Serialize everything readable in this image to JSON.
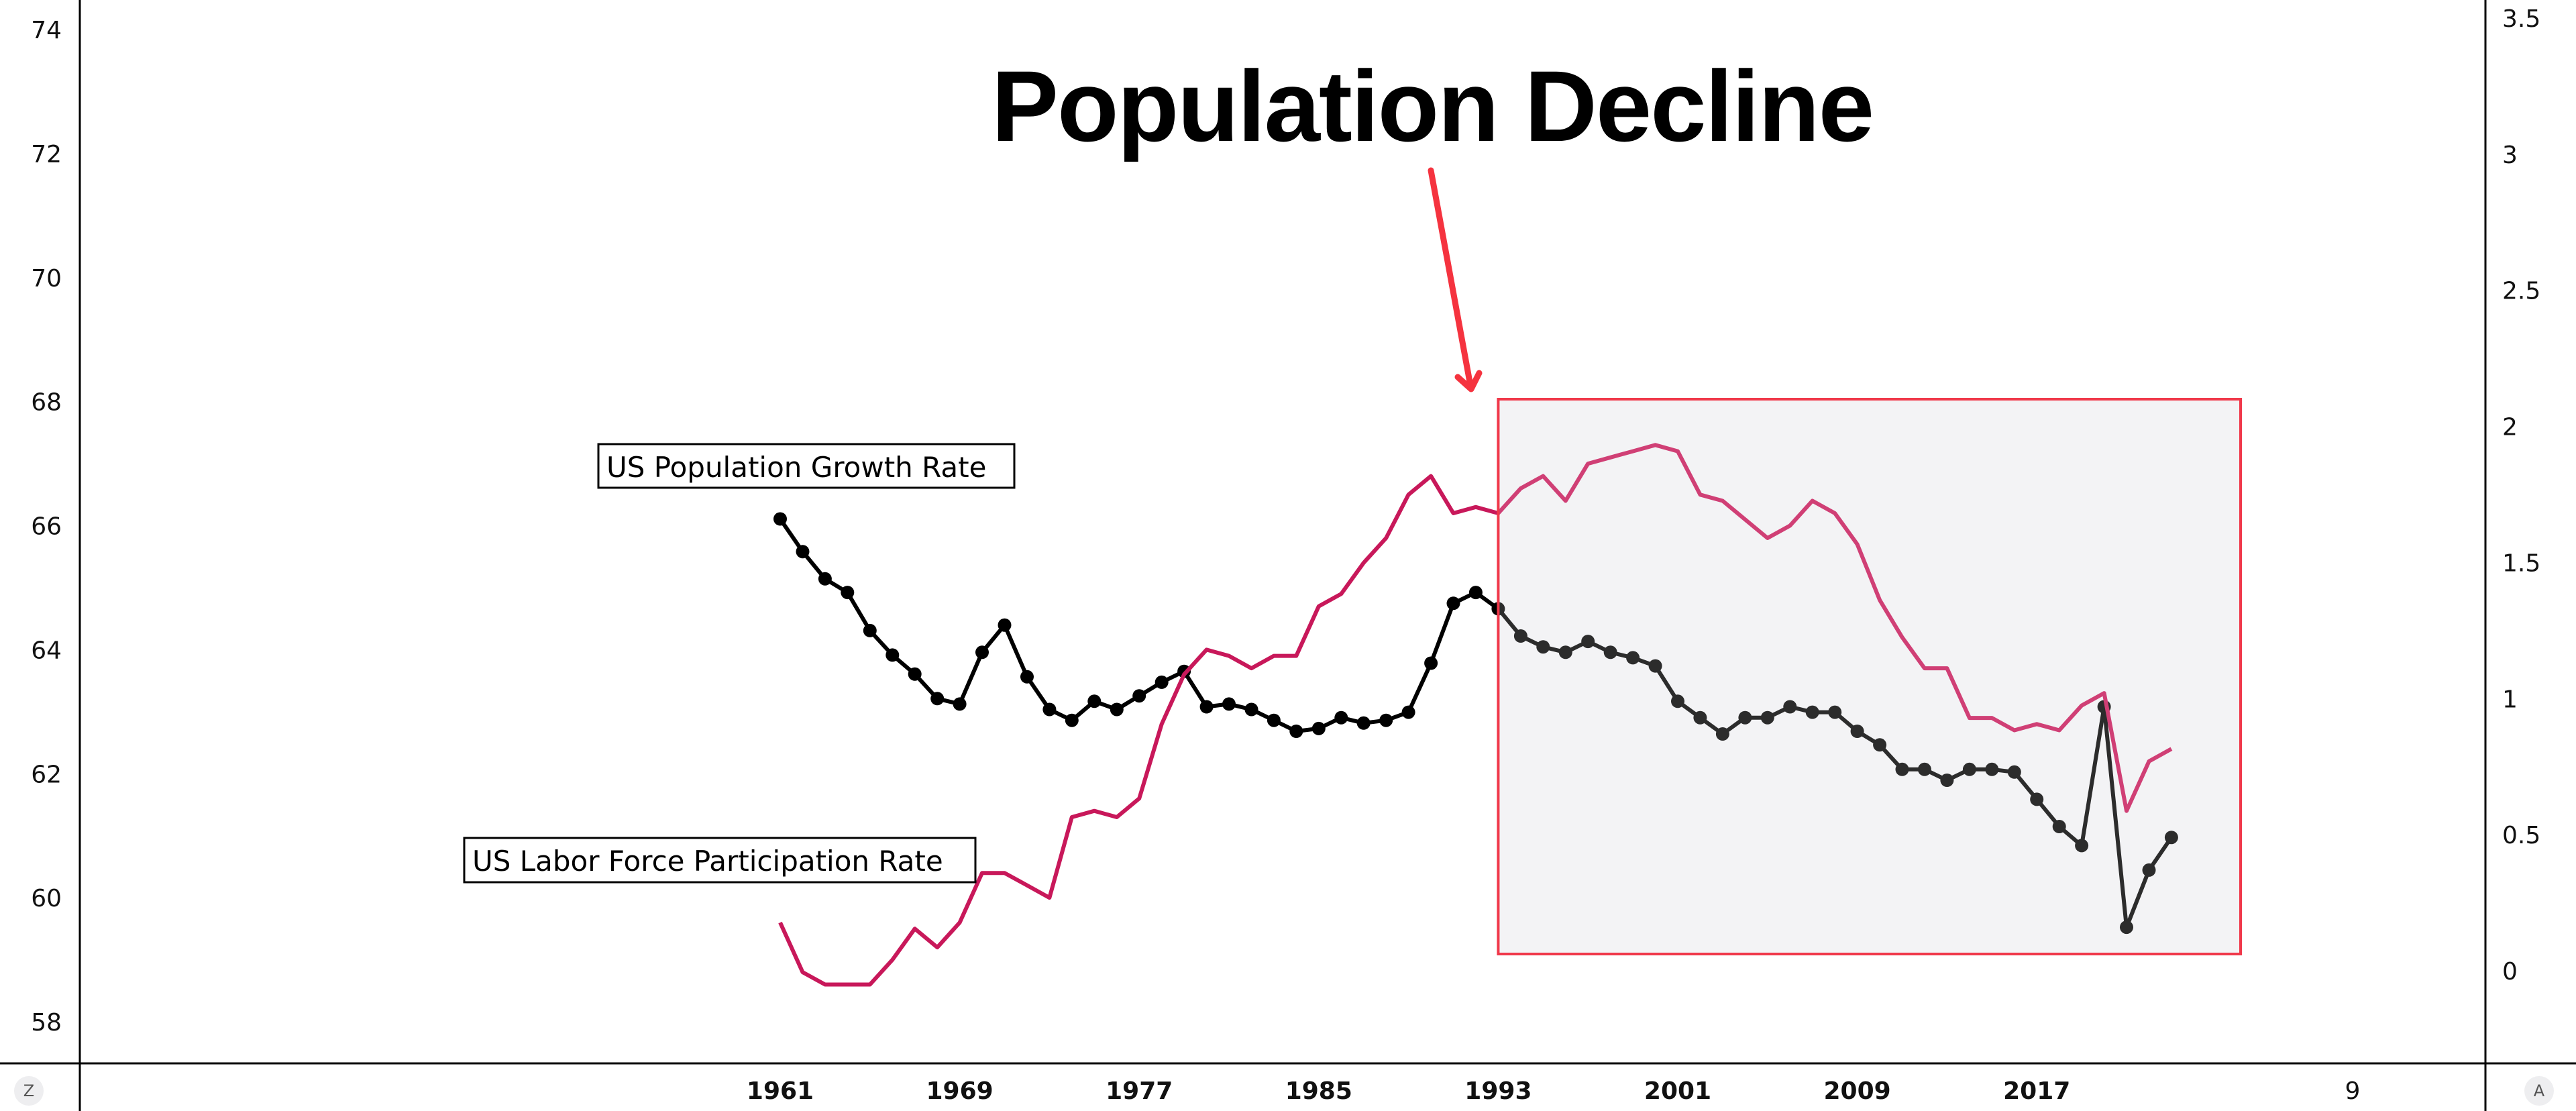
{
  "chart_data": {
    "type": "line",
    "title": "Population Decline",
    "xlabel": "",
    "ylabel_left": "",
    "ylabel_right": "",
    "x_ticks": [
      "1961",
      "1969",
      "1977",
      "1985",
      "1993",
      "2001",
      "2009",
      "2017"
    ],
    "x_extra_label": "9",
    "x_range": [
      1961,
      2023
    ],
    "y_left": {
      "range": [
        58,
        74
      ],
      "ticks": [
        "74",
        "72",
        "70",
        "68",
        "66",
        "64",
        "62",
        "60",
        "58"
      ]
    },
    "y_right": {
      "range": [
        0,
        3.5
      ],
      "ticks": [
        "3.5",
        "3",
        "2.5",
        "2",
        "1.5",
        "1",
        "0.5",
        "0"
      ]
    },
    "grid": false,
    "x": [
      1961,
      1962,
      1963,
      1964,
      1965,
      1966,
      1967,
      1968,
      1969,
      1970,
      1971,
      1972,
      1973,
      1974,
      1975,
      1976,
      1977,
      1978,
      1979,
      1980,
      1981,
      1982,
      1983,
      1984,
      1985,
      1986,
      1987,
      1988,
      1989,
      1990,
      1991,
      1992,
      1993,
      1994,
      1995,
      1996,
      1997,
      1998,
      1999,
      2000,
      2001,
      2002,
      2003,
      2004,
      2005,
      2006,
      2007,
      2008,
      2009,
      2010,
      2011,
      2012,
      2013,
      2014,
      2015,
      2016,
      2017,
      2018,
      2019,
      2020,
      2021,
      2022,
      2023
    ],
    "series": [
      {
        "name": "US Population Growth Rate",
        "axis": "right",
        "color": "#000000",
        "markers": true,
        "values": [
          1.66,
          1.54,
          1.44,
          1.39,
          1.25,
          1.16,
          1.09,
          1.0,
          0.98,
          1.17,
          1.27,
          1.08,
          0.96,
          0.92,
          0.99,
          0.96,
          1.01,
          1.06,
          1.1,
          0.97,
          0.98,
          0.96,
          0.92,
          0.88,
          0.89,
          0.93,
          0.91,
          0.92,
          0.95,
          1.13,
          1.35,
          1.39,
          1.33,
          1.23,
          1.19,
          1.17,
          1.21,
          1.17,
          1.15,
          1.12,
          0.99,
          0.93,
          0.87,
          0.93,
          0.93,
          0.97,
          0.95,
          0.95,
          0.88,
          0.83,
          0.74,
          0.74,
          0.7,
          0.74,
          0.74,
          0.73,
          0.63,
          0.53,
          0.46,
          0.97,
          0.16,
          0.37,
          0.49
        ]
      },
      {
        "name": "US Labor Force Participation Rate",
        "axis": "left",
        "color": "#C8185A",
        "markers": false,
        "values": [
          59.6,
          58.8,
          58.6,
          58.6,
          58.6,
          59.0,
          59.5,
          59.2,
          59.6,
          60.4,
          60.4,
          60.2,
          60.0,
          61.3,
          61.4,
          61.3,
          61.6,
          62.8,
          63.6,
          64.0,
          63.9,
          63.7,
          63.9,
          63.9,
          64.7,
          64.9,
          65.4,
          65.8,
          66.5,
          66.8,
          66.2,
          66.3,
          66.2,
          66.6,
          66.8,
          66.4,
          67.0,
          67.1,
          67.2,
          67.3,
          67.2,
          66.5,
          66.4,
          66.1,
          65.8,
          66.0,
          66.4,
          66.2,
          65.7,
          64.8,
          64.2,
          63.7,
          63.7,
          62.9,
          62.9,
          62.7,
          62.8,
          62.7,
          63.1,
          63.3,
          61.4,
          62.2,
          62.4
        ]
      }
    ],
    "annotations": [
      {
        "type": "label-box",
        "text": "US Population Growth Rate",
        "series": "US Population Growth Rate"
      },
      {
        "type": "label-box",
        "text": "US Labor Force Participation Rate",
        "series": "US Labor Force Participation Rate"
      },
      {
        "type": "highlight-region",
        "x_range": [
          1993,
          2026
        ],
        "label": "Population Decline",
        "color": "#F0384A"
      },
      {
        "type": "arrow",
        "from": "title",
        "to": "highlight-region",
        "color": "#F5333F"
      }
    ]
  },
  "badges": {
    "left": "Z",
    "right": "A"
  }
}
